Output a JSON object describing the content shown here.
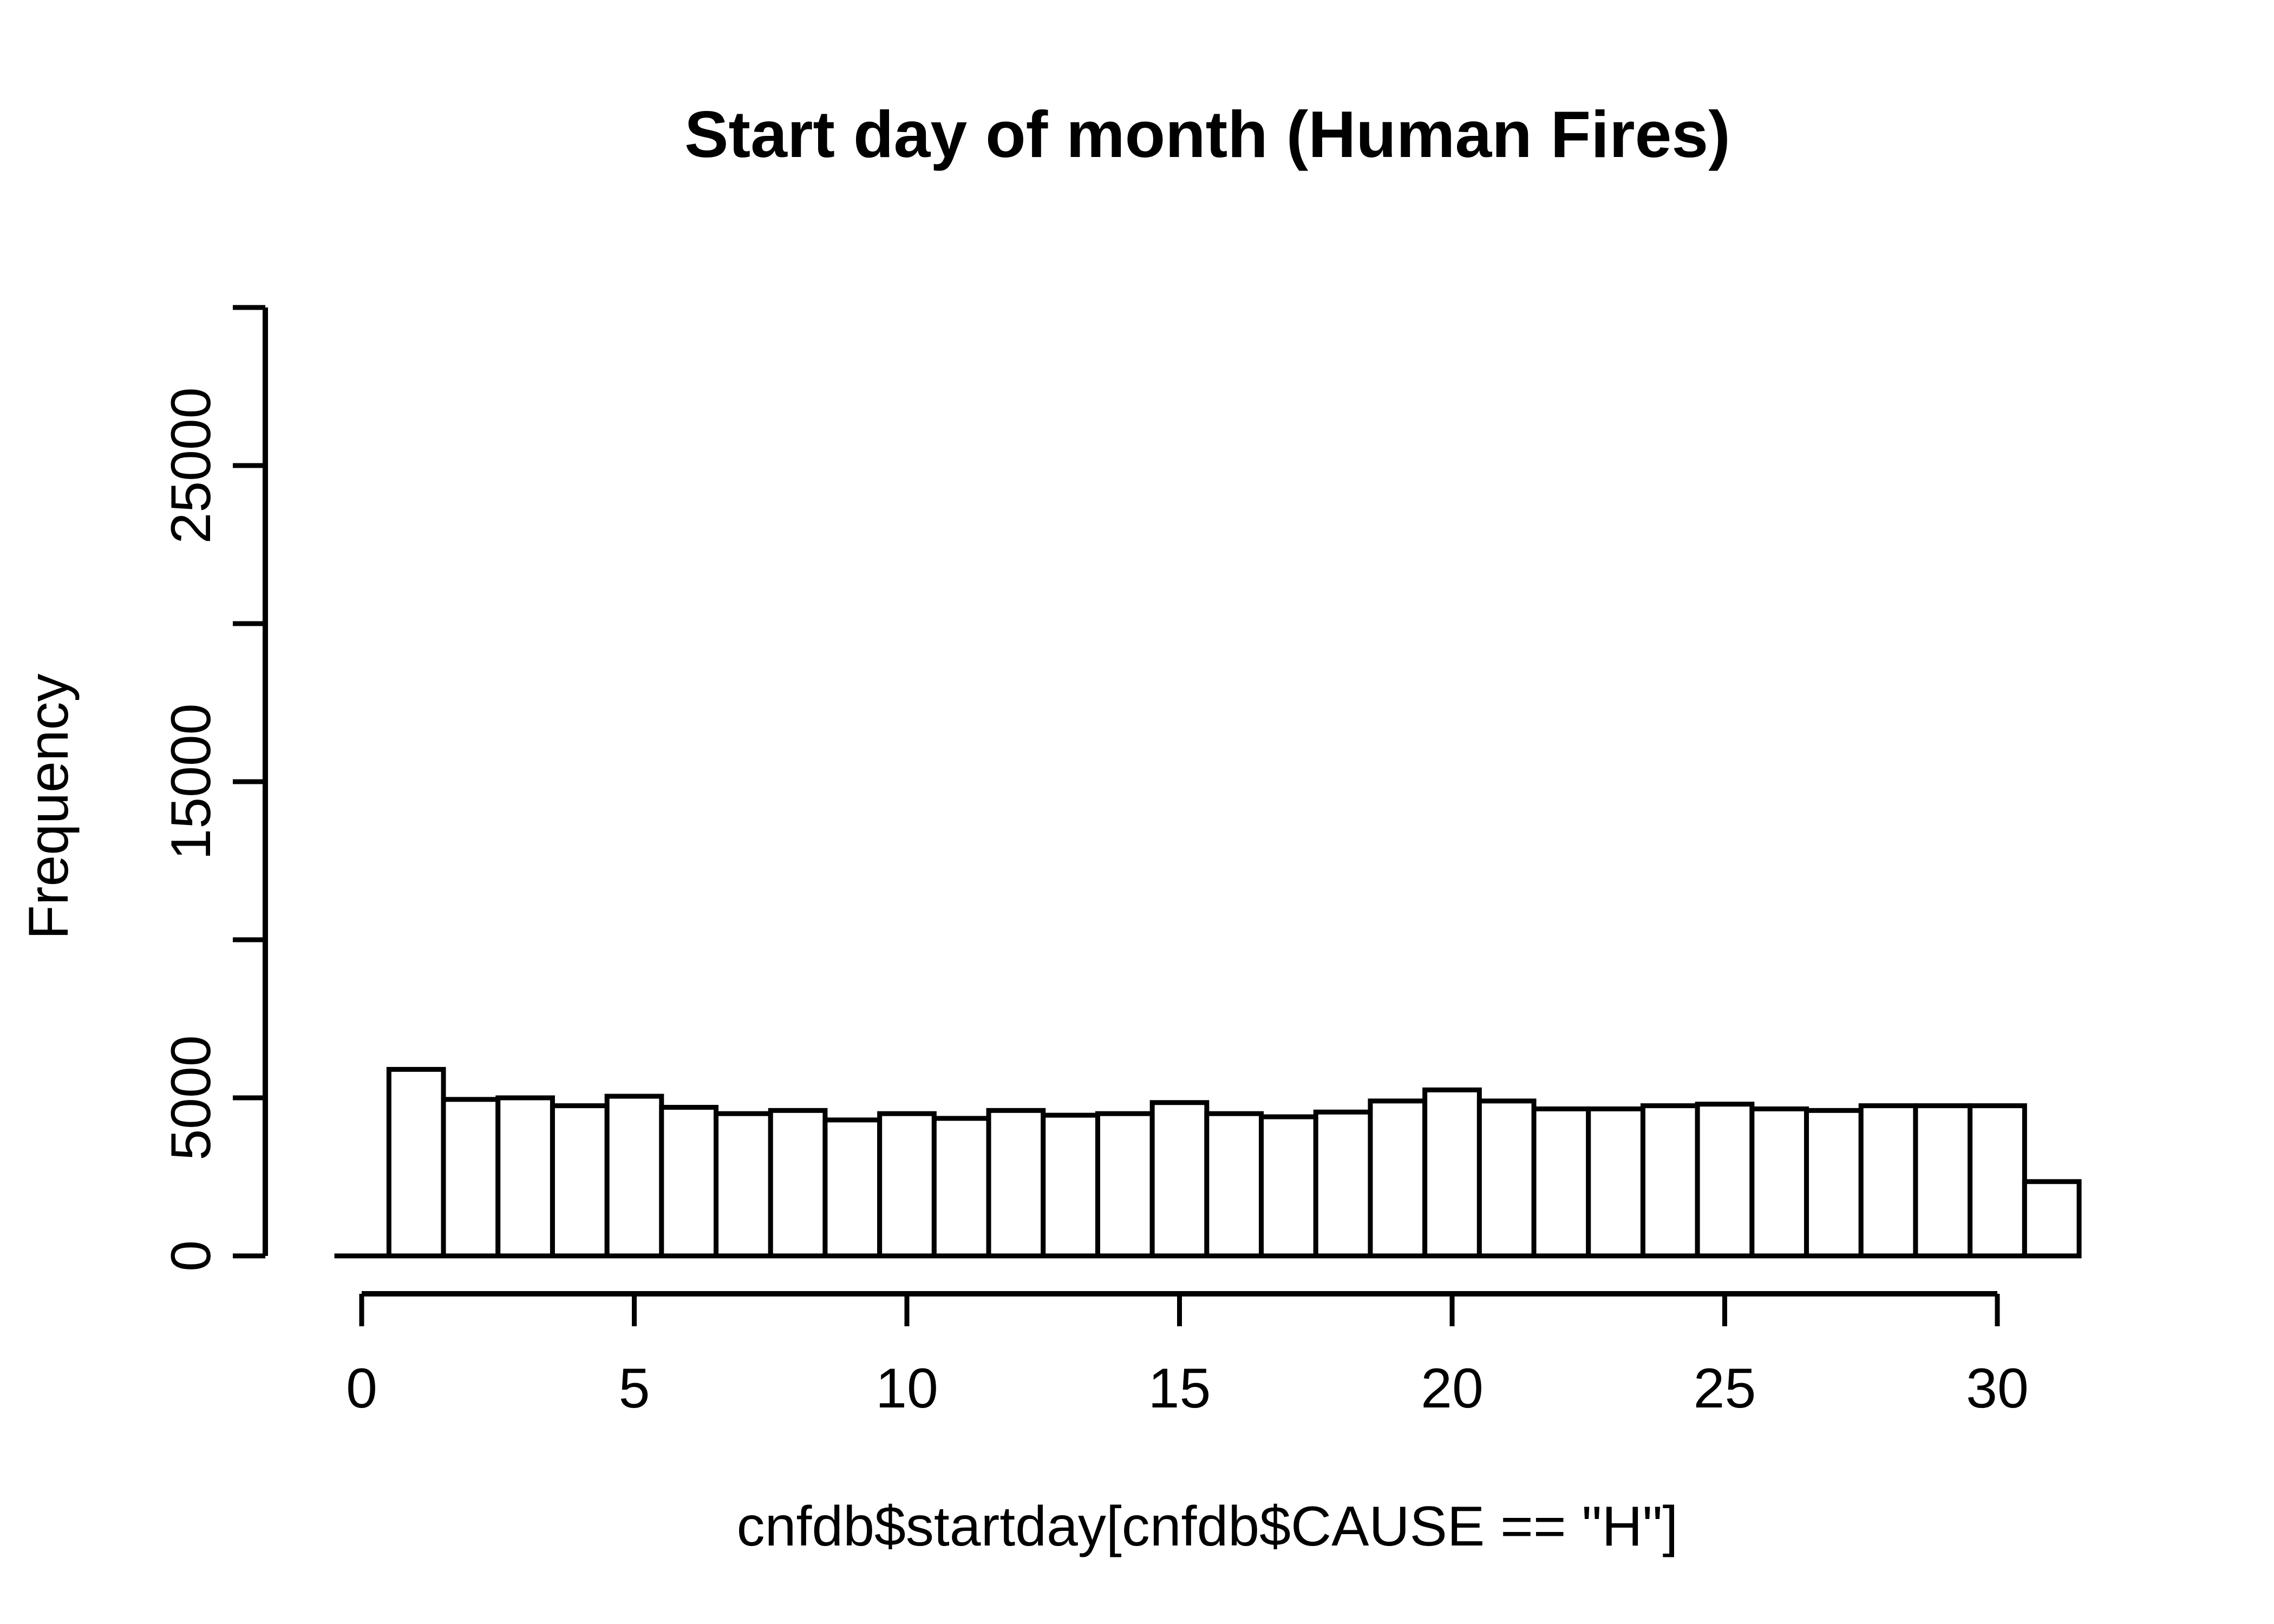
{
  "figure": {
    "title": "Start day of month (Human Fires)",
    "xlabel": "cnfdb$startday[cnfdb$CAUSE == \"H\"]",
    "ylabel": "Frequency"
  },
  "colors": {
    "background": "#ffffff",
    "foreground": "#000000",
    "bar_fill": "#ffffff",
    "bar_stroke": "#000000"
  },
  "chart_data": {
    "type": "bar",
    "style": "histogram",
    "title": "Start day of month (Human Fires)",
    "xlabel": "cnfdb$startday[cnfdb$CAUSE == \"H\"]",
    "ylabel": "Frequency",
    "grid": false,
    "legend": "none",
    "bins": {
      "start": -0.5,
      "width": 1,
      "count": 32
    },
    "bin_centers": [
      0,
      1,
      2,
      3,
      4,
      5,
      6,
      7,
      8,
      9,
      10,
      11,
      12,
      13,
      14,
      15,
      16,
      17,
      18,
      19,
      20,
      21,
      22,
      23,
      24,
      25,
      26,
      27,
      28,
      29,
      30,
      31
    ],
    "counts": [
      0,
      5900,
      4950,
      5000,
      4750,
      5050,
      4700,
      4500,
      4600,
      4300,
      4500,
      4350,
      4600,
      4450,
      4500,
      4850,
      4500,
      4400,
      4550,
      4900,
      5250,
      4900,
      4650,
      4650,
      4750,
      4800,
      4650,
      4600,
      4750,
      4750,
      4750,
      2350
    ],
    "x_ticks": [
      0,
      5,
      10,
      15,
      20,
      25,
      30
    ],
    "x_tick_labels": [
      "0",
      "5",
      "10",
      "15",
      "20",
      "25",
      "30"
    ],
    "y_ticks": [
      0,
      5000,
      10000,
      15000,
      20000,
      25000,
      30000
    ],
    "y_tick_labels": [
      "0",
      "5000",
      "",
      "15000",
      "",
      "25000",
      ""
    ],
    "xlim": [
      -0.5,
      31.5
    ],
    "ylim": [
      0,
      30000
    ]
  }
}
